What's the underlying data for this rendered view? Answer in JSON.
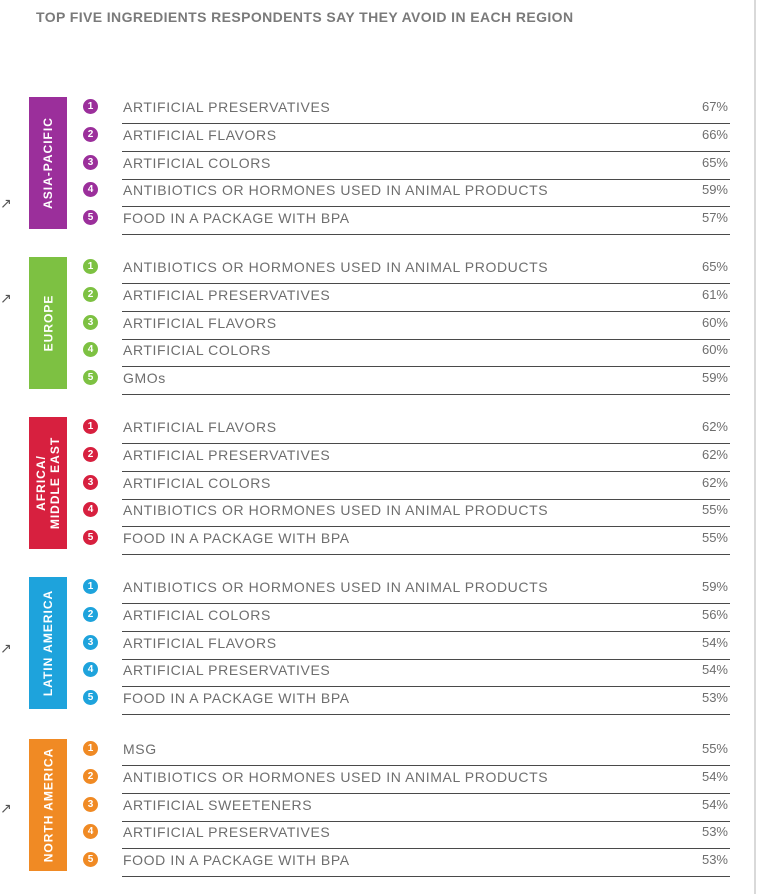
{
  "chart_data": {
    "type": "table",
    "title": "TOP FIVE INGREDIENTS RESPONDENTS SAY THEY AVOID IN EACH REGION",
    "regions": [
      {
        "name": "ASIA-PACIFIC",
        "color": "#9b2f9b",
        "items": [
          {
            "rank": "1",
            "ingredient": "ARTIFICIAL PRESERVATIVES",
            "value": "67%"
          },
          {
            "rank": "2",
            "ingredient": "ARTIFICIAL FLAVORS",
            "value": "66%"
          },
          {
            "rank": "3",
            "ingredient": "ARTIFICIAL COLORS",
            "value": "65%"
          },
          {
            "rank": "4",
            "ingredient": "ANTIBIOTICS OR HORMONES USED IN ANIMAL PRODUCTS",
            "value": "59%"
          },
          {
            "rank": "5",
            "ingredient": "FOOD IN A PACKAGE WITH BPA",
            "value": "57%"
          }
        ]
      },
      {
        "name": "EUROPE",
        "color": "#7dc142",
        "items": [
          {
            "rank": "1",
            "ingredient": "ANTIBIOTICS OR HORMONES USED IN ANIMAL PRODUCTS",
            "value": "65%"
          },
          {
            "rank": "2",
            "ingredient": "ARTIFICIAL PRESERVATIVES",
            "value": "61%"
          },
          {
            "rank": "3",
            "ingredient": "ARTIFICIAL FLAVORS",
            "value": "60%"
          },
          {
            "rank": "4",
            "ingredient": "ARTIFICIAL COLORS",
            "value": "60%"
          },
          {
            "rank": "5",
            "ingredient": "GMOs",
            "value": "59%"
          }
        ]
      },
      {
        "name": "AFRICA/\nMIDDLE EAST",
        "color": "#d7203f",
        "items": [
          {
            "rank": "1",
            "ingredient": "ARTIFICIAL FLAVORS",
            "value": "62%"
          },
          {
            "rank": "2",
            "ingredient": "ARTIFICIAL PRESERVATIVES",
            "value": "62%"
          },
          {
            "rank": "3",
            "ingredient": "ARTIFICIAL COLORS",
            "value": "62%"
          },
          {
            "rank": "4",
            "ingredient": "ANTIBIOTICS OR HORMONES USED IN ANIMAL PRODUCTS",
            "value": "55%"
          },
          {
            "rank": "5",
            "ingredient": "FOOD IN A PACKAGE WITH BPA",
            "value": "55%"
          }
        ]
      },
      {
        "name": "LATIN AMERICA",
        "color": "#1ea3dc",
        "items": [
          {
            "rank": "1",
            "ingredient": "ANTIBIOTICS OR HORMONES USED IN ANIMAL PRODUCTS",
            "value": "59%"
          },
          {
            "rank": "2",
            "ingredient": "ARTIFICIAL COLORS",
            "value": "56%"
          },
          {
            "rank": "3",
            "ingredient": "ARTIFICIAL FLAVORS",
            "value": "54%"
          },
          {
            "rank": "4",
            "ingredient": "ARTIFICIAL PRESERVATIVES",
            "value": "54%"
          },
          {
            "rank": "5",
            "ingredient": "FOOD IN A PACKAGE WITH BPA",
            "value": "53%"
          }
        ]
      },
      {
        "name": "NORTH AMERICA",
        "color": "#f08a24",
        "items": [
          {
            "rank": "1",
            "ingredient": "MSG",
            "value": "55%"
          },
          {
            "rank": "2",
            "ingredient": "ANTIBIOTICS OR HORMONES USED IN ANIMAL PRODUCTS",
            "value": "54%"
          },
          {
            "rank": "3",
            "ingredient": "ARTIFICIAL SWEETENERS",
            "value": "54%"
          },
          {
            "rank": "4",
            "ingredient": "ARTIFICIAL PRESERVATIVES",
            "value": "53%"
          },
          {
            "rank": "5",
            "ingredient": "FOOD IN A PACKAGE WITH BPA",
            "value": "53%"
          }
        ]
      }
    ]
  }
}
